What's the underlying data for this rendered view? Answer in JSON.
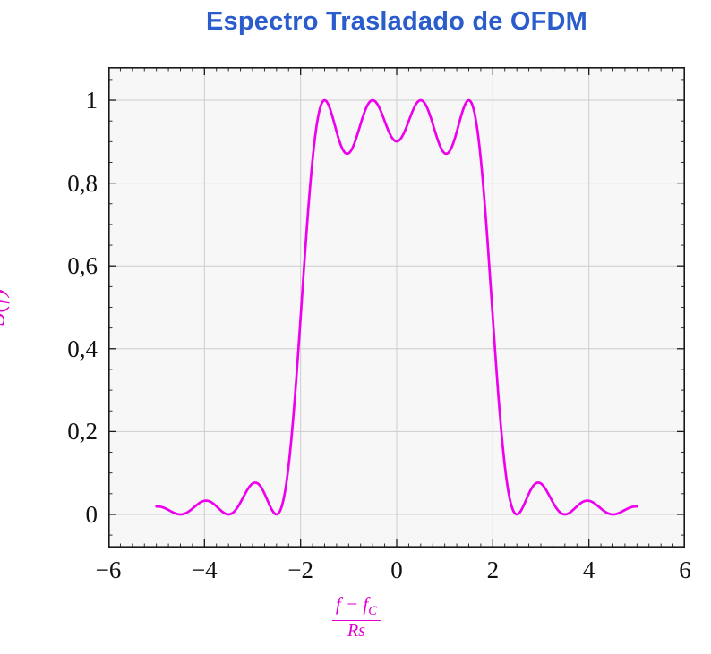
{
  "chart_data": {
    "type": "line",
    "title": "Espectro Trasladado de OFDM",
    "ylabel": "S(f)",
    "xlabel_parts": {
      "num_main": "f − f",
      "num_sub": "C",
      "den": "Rs"
    },
    "xlim": [
      -6,
      6
    ],
    "ylim": [
      -0.08,
      1.08
    ],
    "x_ticks": {
      "values": [
        -6,
        -4,
        -2,
        0,
        2,
        4,
        6
      ],
      "labels": [
        "−6",
        "−4",
        "−2",
        "0",
        "2",
        "4",
        "6"
      ]
    },
    "y_ticks": {
      "values": [
        0,
        0.2,
        0.4,
        0.6,
        0.8,
        1
      ],
      "labels": [
        "0",
        "0,2",
        "0,4",
        "0,6",
        "0,8",
        "1"
      ]
    },
    "minor_x_step": 0.25,
    "minor_y_step": 0.05,
    "grid": true,
    "legend": "none",
    "series": [
      {
        "name": "S(f)",
        "model": "S(f) = sum over subcarriers k of sinc^2(f - k)",
        "subcarriers": [
          -1.5,
          -0.5,
          0.5,
          1.5
        ],
        "x_range": [
          -5,
          5
        ],
        "sample_points": {
          "x": [
            -5,
            -4.5,
            -4,
            -3.5,
            -3,
            -2.5,
            -2,
            -1.5,
            -1,
            -0.5,
            0,
            0.5,
            1,
            1.5,
            2,
            2.5,
            3,
            3.5,
            4,
            4.5,
            5
          ],
          "y": [
            0.019,
            0,
            0.033,
            0,
            0.075,
            0,
            0.475,
            1,
            0.872,
            1,
            0.901,
            1,
            0.872,
            1,
            0.475,
            0,
            0.075,
            0,
            0.033,
            0,
            0.019
          ]
        }
      }
    ],
    "colors": {
      "line": "#ee00ee",
      "grid": "#cccccc",
      "frame": "#1a1a1a",
      "plot_bg": "#f7f7f7",
      "tick": "#1a1a1a",
      "axis_label": "#e000d0",
      "title": "#2a5ccc",
      "tick_text": "#111111"
    }
  }
}
